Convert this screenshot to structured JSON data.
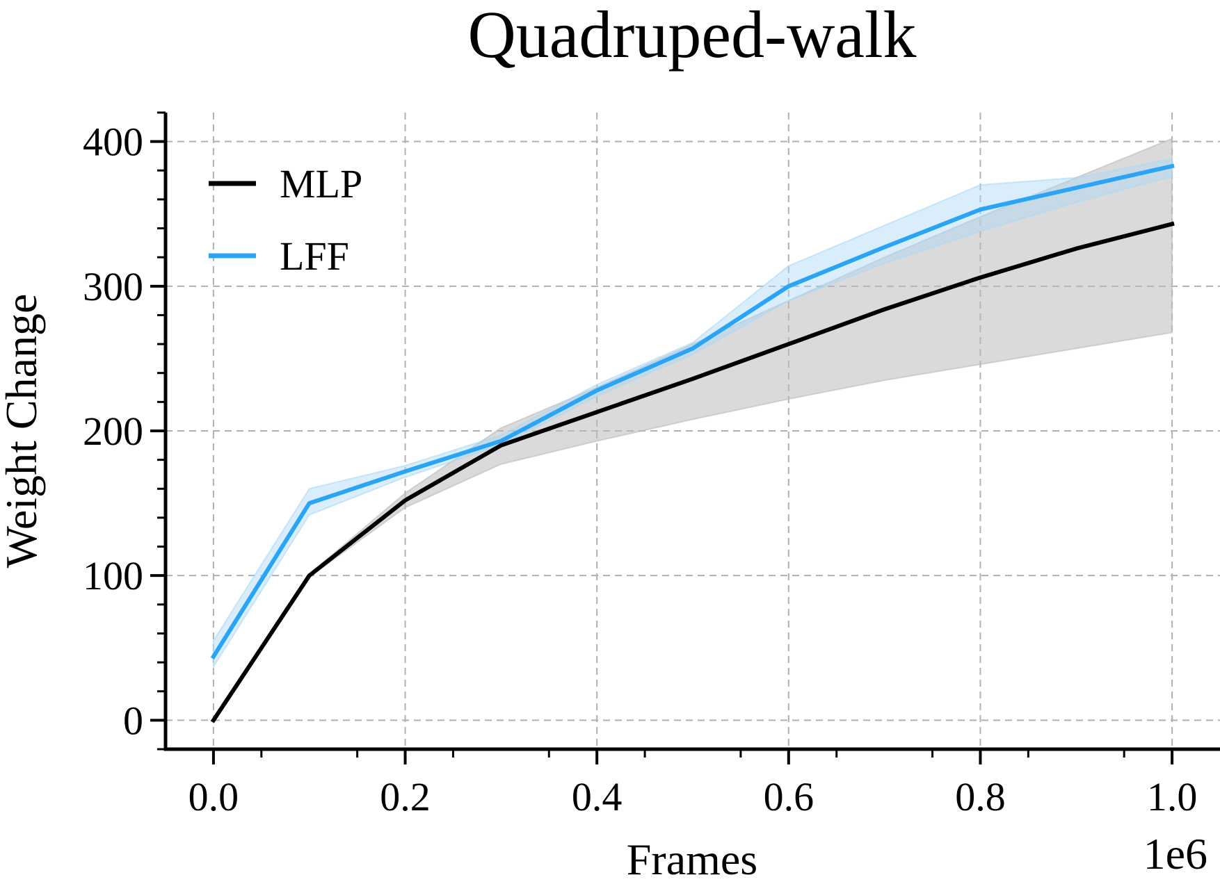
{
  "chart_data": {
    "type": "line",
    "title": "Quadruped-walk",
    "xlabel": "Frames",
    "ylabel": "Weight Change",
    "x_offset_label": "1e6",
    "xlim": [
      -0.05,
      1.05
    ],
    "ylim": [
      -20,
      420
    ],
    "xticks": [
      0.0,
      0.2,
      0.4,
      0.6,
      0.8,
      1.0
    ],
    "xtick_labels": [
      "0.0",
      "0.2",
      "0.4",
      "0.6",
      "0.8",
      "1.0"
    ],
    "yticks": [
      0,
      100,
      200,
      300,
      400
    ],
    "ytick_labels": [
      "0",
      "100",
      "200",
      "300",
      "400"
    ],
    "grid": true,
    "legend_position": "top-left",
    "x": [
      0.0,
      0.1,
      0.2,
      0.3,
      0.4,
      0.5,
      0.6,
      0.7,
      0.8,
      0.9,
      1.0
    ],
    "series": [
      {
        "name": "MLP",
        "color": "#000000",
        "band_color": "#bbbbbb",
        "values": [
          0,
          100,
          152,
          190,
          213,
          236,
          260,
          284,
          306,
          326,
          343
        ],
        "band_lower": [
          0,
          99,
          147,
          177,
          193,
          208,
          222,
          235,
          246,
          257,
          268
        ],
        "band_upper": [
          0,
          101,
          157,
          202,
          230,
          260,
          290,
          320,
          348,
          375,
          402
        ]
      },
      {
        "name": "LFF",
        "color": "#2aa4f4",
        "band_color": "#aad8f7",
        "values": [
          44,
          150,
          172,
          193,
          228,
          257,
          300,
          327,
          353,
          368,
          383
        ],
        "band_lower": [
          37,
          142,
          168,
          190,
          224,
          253,
          290,
          316,
          338,
          358,
          376
        ],
        "band_upper": [
          55,
          160,
          176,
          197,
          232,
          261,
          314,
          342,
          370,
          375,
          388
        ]
      }
    ]
  }
}
